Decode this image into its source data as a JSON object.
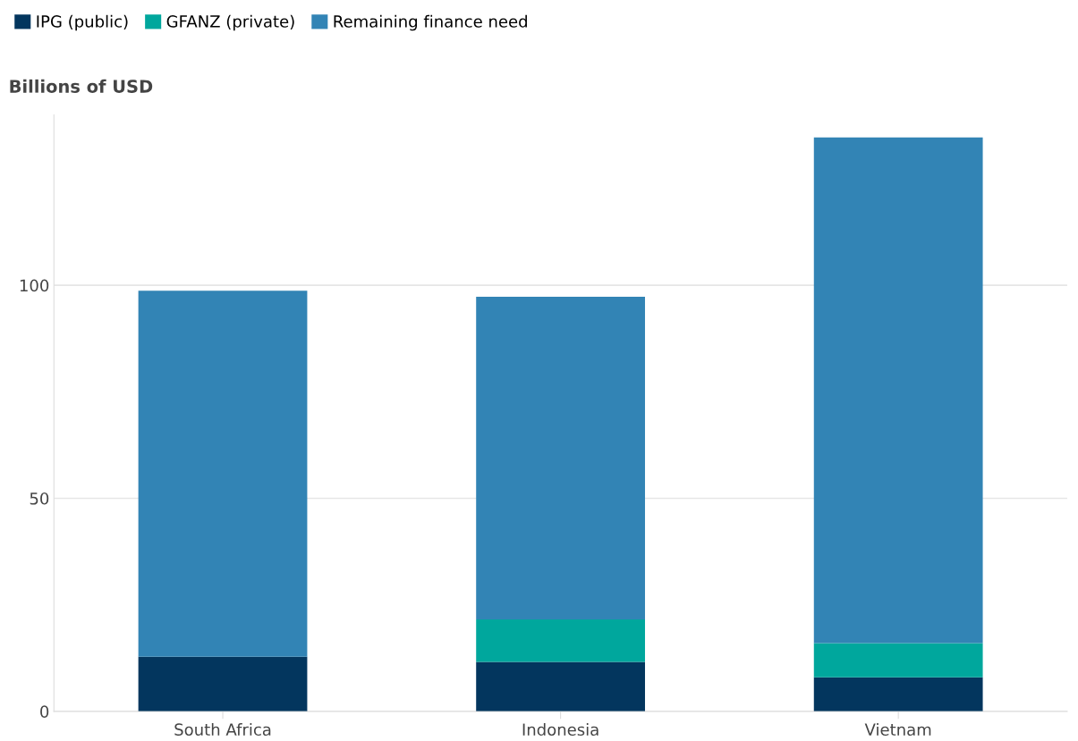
{
  "chart_data": {
    "type": "bar",
    "stacked": true,
    "ylabel": "Billions of USD",
    "categories": [
      "South Africa",
      "Indonesia",
      "Vietnam"
    ],
    "series": [
      {
        "name": "IPG (public)",
        "color": "#03365e",
        "values": [
          12.8,
          11.6,
          8.0
        ]
      },
      {
        "name": "GFANZ (private)",
        "color": "#00a79d",
        "values": [
          0,
          10.0,
          8.0
        ]
      },
      {
        "name": "Remaining finance need",
        "color": "#3284b5",
        "values": [
          85.9,
          75.7,
          118.7
        ]
      }
    ],
    "ylim": [
      0,
      140
    ],
    "yticks": [
      0,
      50,
      100
    ],
    "grid": "y",
    "legend": "top left"
  }
}
